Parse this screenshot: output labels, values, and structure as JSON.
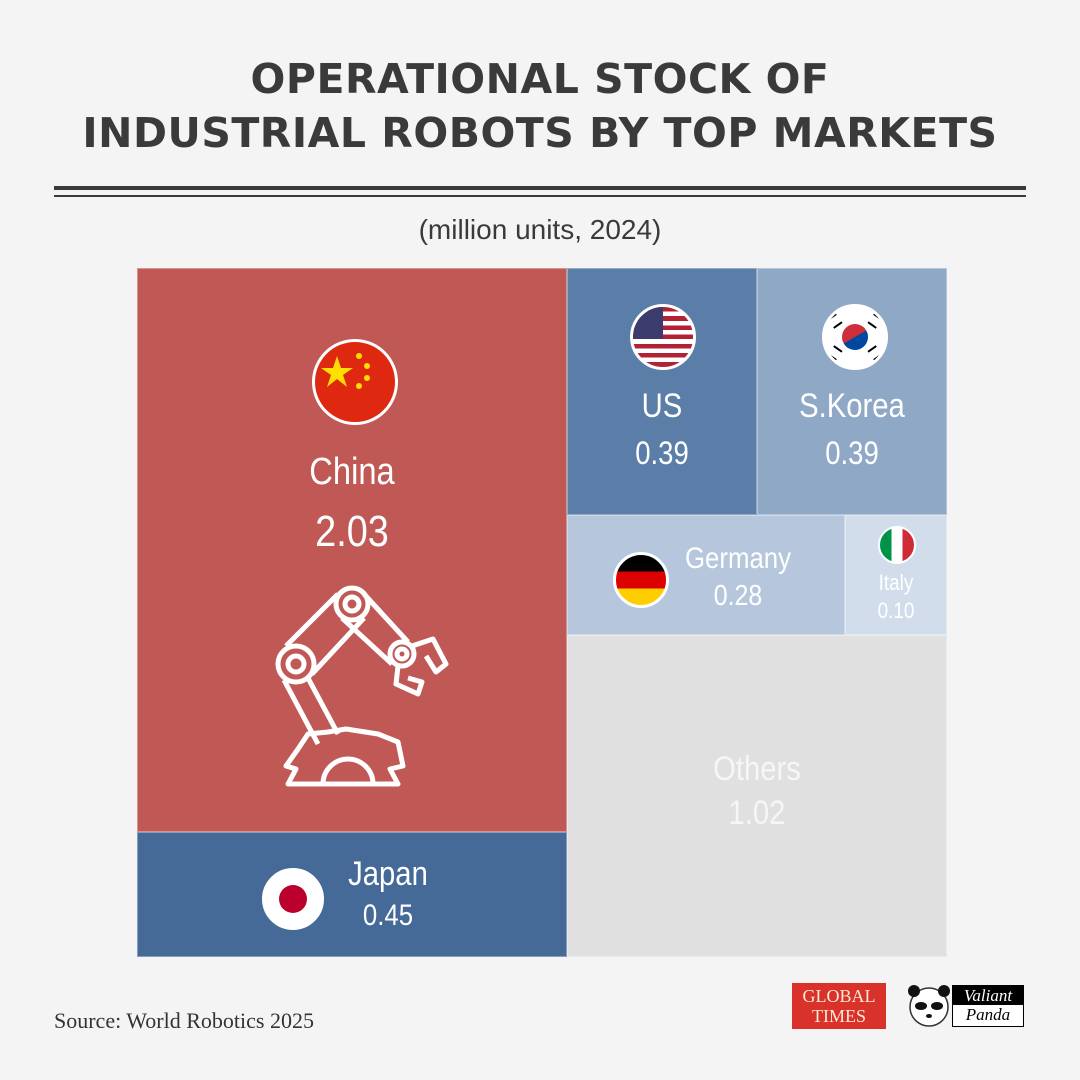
{
  "title_line1": "OPERATIONAL STOCK OF",
  "title_line2": "INDUSTRIAL ROBOTS BY TOP MARKETS",
  "subtitle": "(million units, 2024)",
  "source": "Source: World Robotics 2025",
  "logos": {
    "global_times": [
      "GLOBAL",
      "TIMES"
    ],
    "valiant_panda": [
      "Valiant",
      "Panda"
    ]
  },
  "chart_data": {
    "type": "treemap",
    "title": "OPERATIONAL STOCK OF INDUSTRIAL ROBOTS BY TOP MARKETS",
    "subtitle": "(million units, 2024)",
    "items": [
      {
        "name": "China",
        "value": 2.03,
        "label": "2.03",
        "color": "#c05955",
        "icon": "china-flag-icon"
      },
      {
        "name": "Japan",
        "value": 0.45,
        "label": "0.45",
        "color": "#456a98",
        "icon": "japan-flag-icon"
      },
      {
        "name": "US",
        "value": 0.39,
        "label": "0.39",
        "color": "#5b7ea9",
        "icon": "us-flag-icon"
      },
      {
        "name": "S.Korea",
        "value": 0.39,
        "label": "0.39",
        "color": "#8fa8c6",
        "icon": "south-korea-flag-icon"
      },
      {
        "name": "Germany",
        "value": 0.28,
        "label": "0.28",
        "color": "#b6c7dd",
        "icon": "germany-flag-icon"
      },
      {
        "name": "Italy",
        "value": 0.1,
        "label": "0.10",
        "color": "#d2ddec",
        "icon": "italy-flag-icon"
      },
      {
        "name": "Others",
        "value": 1.02,
        "label": "1.02",
        "color": "#e0e0e0"
      }
    ]
  }
}
